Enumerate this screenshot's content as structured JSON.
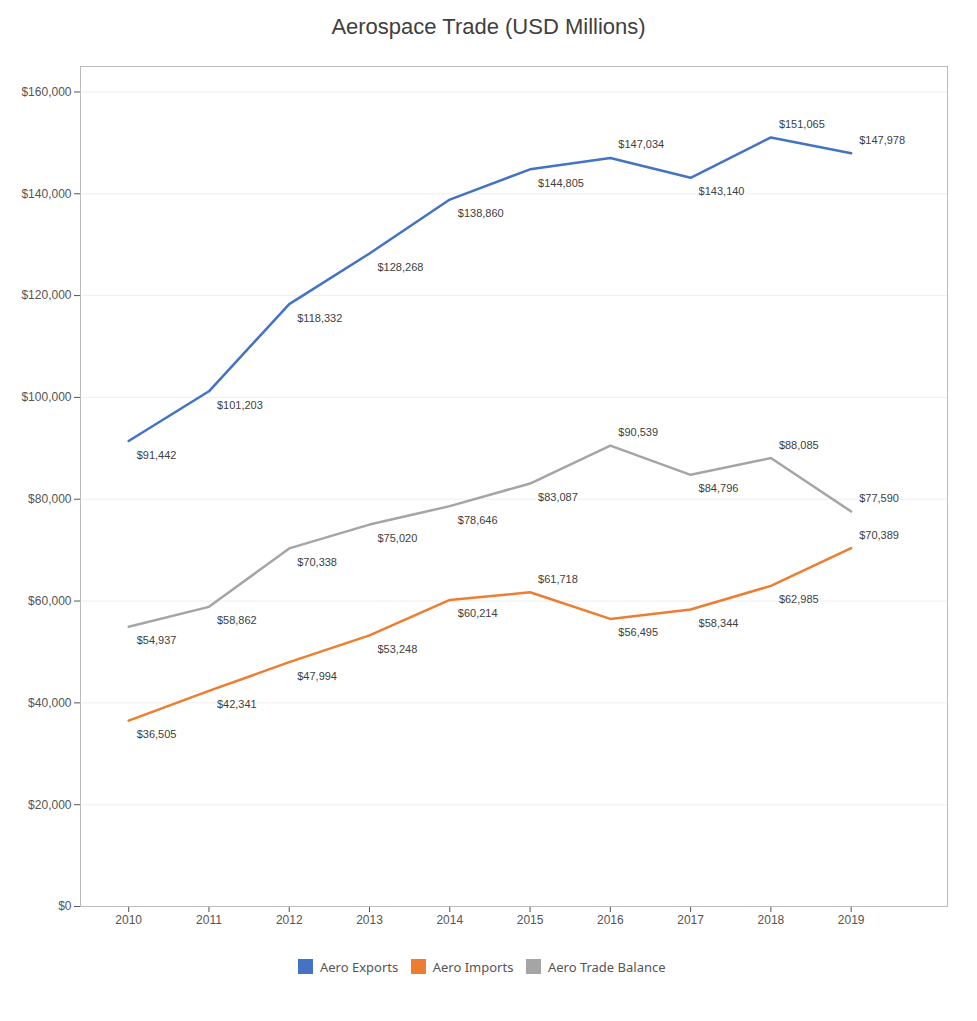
{
  "chart_data": {
    "type": "line",
    "title": "Aerospace Trade (USD Millions)",
    "x": [
      2010,
      2011,
      2012,
      2013,
      2014,
      2015,
      2016,
      2017,
      2018,
      2019
    ],
    "xlim": [
      2009.4,
      2020.2
    ],
    "xticks": [
      2010,
      2011,
      2012,
      2013,
      2014,
      2015,
      2016,
      2017,
      2018,
      2019
    ],
    "ylim": [
      0,
      165000
    ],
    "yticks": [
      {
        "value": 0,
        "label": "$0"
      },
      {
        "value": 20000,
        "label": "$20,000"
      },
      {
        "value": 40000,
        "label": "$40,000"
      },
      {
        "value": 60000,
        "label": "$60,000"
      },
      {
        "value": 80000,
        "label": "$80,000"
      },
      {
        "value": 100000,
        "label": "$100,000"
      },
      {
        "value": 120000,
        "label": "$120,000"
      },
      {
        "value": 140000,
        "label": "$140,000"
      },
      {
        "value": 160000,
        "label": "$160,000"
      }
    ],
    "grid": true,
    "legend": "bottom",
    "data_labels": true,
    "series": [
      {
        "name": "Aero Exports",
        "color": "#4472C4",
        "values": [
          91442,
          101203,
          118332,
          128268,
          138860,
          144805,
          147034,
          143140,
          151065,
          147978
        ],
        "value_labels": [
          "$91,442",
          "$101,203",
          "$118,332",
          "$128,268",
          "$138,860",
          "$144,805",
          "$147,034",
          "$143,140",
          "$151,065",
          "$147,978"
        ]
      },
      {
        "name": "Aero Imports",
        "color": "#ED7D31",
        "values": [
          36505,
          42341,
          47994,
          53248,
          60214,
          61718,
          56495,
          58344,
          62985,
          70389
        ],
        "value_labels": [
          "$36,505",
          "$42,341",
          "$47,994",
          "$53,248",
          "$60,214",
          "$61,718",
          "$56,495",
          "$58,344",
          "$62,985",
          "$70,389"
        ]
      },
      {
        "name": "Aero Trade Balance",
        "color": "#A5A5A5",
        "values": [
          54937,
          58862,
          70338,
          75020,
          78646,
          83087,
          90539,
          84796,
          88085,
          77590
        ],
        "value_labels": [
          "$54,937",
          "$58,862",
          "$70,338",
          "$75,020",
          "$78,646",
          "$83,087",
          "$90,539",
          "$84,796",
          "$88,085",
          "$77,590"
        ]
      }
    ]
  }
}
